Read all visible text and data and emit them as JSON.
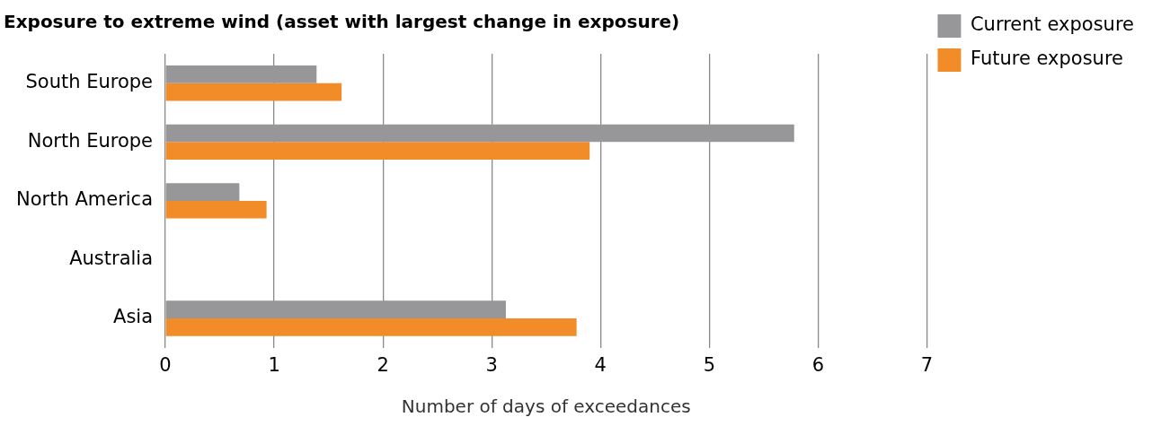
{
  "chart_data": {
    "type": "bar",
    "orientation": "horizontal",
    "title": "Exposure to extreme wind (asset with largest change in exposure)",
    "xlabel": "Number of days of exceedances",
    "categories": [
      "South Europe",
      "North Europe",
      "North America",
      "Australia",
      "Asia"
    ],
    "series": [
      {
        "name": "Current exposure",
        "color": "#97979a",
        "values": [
          1.39,
          5.78,
          0.68,
          null,
          3.13
        ]
      },
      {
        "name": "Future exposure",
        "color": "#f28c28",
        "values": [
          1.62,
          3.9,
          0.93,
          null,
          3.78
        ]
      }
    ],
    "xlim": [
      0,
      7
    ],
    "xticks": [
      0,
      1,
      2,
      3,
      4,
      5,
      6,
      7
    ],
    "grid": "x",
    "legend": "top right"
  }
}
